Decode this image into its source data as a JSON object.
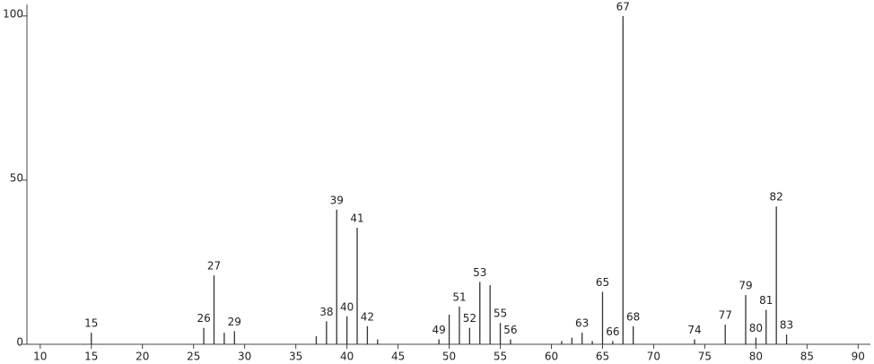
{
  "chart_data": {
    "type": "stick",
    "xlim": [
      8.7,
      91.2
    ],
    "ylim": [
      0,
      103.5
    ],
    "xticks": [
      10,
      15,
      20,
      25,
      30,
      35,
      40,
      45,
      50,
      55,
      60,
      65,
      70,
      75,
      80,
      85,
      90
    ],
    "yticks": [
      0,
      50,
      100
    ],
    "series": [
      {
        "color": "#333333",
        "labels": true,
        "x": [
          15,
          26,
          27,
          29,
          38,
          39,
          40,
          41,
          42,
          49,
          51,
          52,
          53,
          55,
          56,
          63,
          65,
          66,
          67,
          68,
          74,
          77,
          79,
          80,
          81,
          82,
          83
        ],
        "values": [
          3.5,
          5,
          21,
          4,
          7,
          41,
          8.5,
          35.5,
          5.5,
          1.5,
          11.5,
          5,
          19,
          6.5,
          1.5,
          3.5,
          16,
          1,
          100,
          5.5,
          1.5,
          6,
          15,
          2,
          10.5,
          42,
          3
        ]
      },
      {
        "color": "#333333",
        "labels": false,
        "x": [
          28,
          37,
          43,
          50,
          54,
          61,
          62,
          64
        ],
        "values": [
          3.5,
          2.5,
          1.5,
          9,
          18,
          1,
          2,
          1
        ]
      }
    ]
  }
}
